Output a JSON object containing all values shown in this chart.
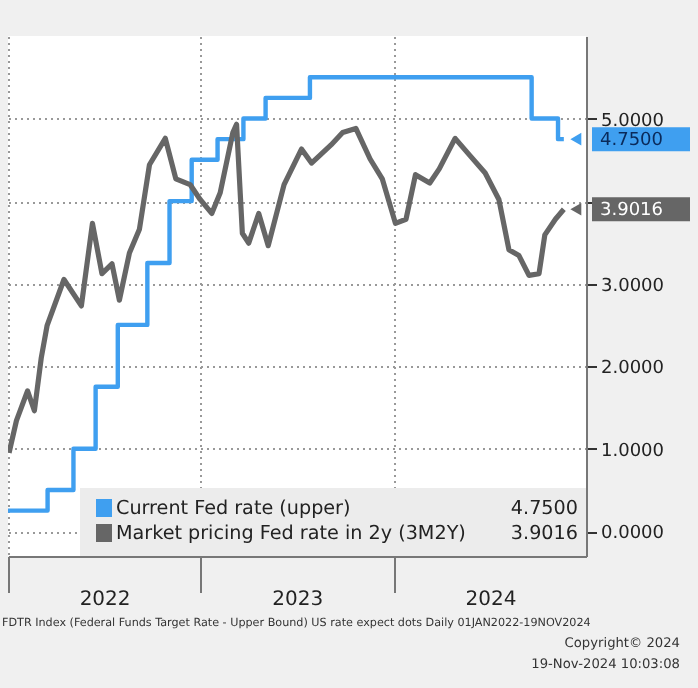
{
  "chart_data": {
    "type": "line",
    "xlim": [
      "2022-01-01",
      "2024-12-31"
    ],
    "xticks": [
      {
        "value": "2022-01-01",
        "label": null
      },
      {
        "value": "2022-07-02",
        "label": "2022"
      },
      {
        "value": "2023-01-01",
        "label": null
      },
      {
        "value": "2023-07-02",
        "label": "2023"
      },
      {
        "value": "2024-01-01",
        "label": null
      },
      {
        "value": "2024-07-02",
        "label": "2024"
      }
    ],
    "ylim": [
      -0.3,
      6.0
    ],
    "yticks": [
      {
        "value": 0,
        "label": "0.0000"
      },
      {
        "value": 1,
        "label": "1.0000"
      },
      {
        "value": 2,
        "label": "2.0000"
      },
      {
        "value": 3,
        "label": "3.0000"
      },
      {
        "value": 4,
        "label": null
      },
      {
        "value": 5,
        "label": "5.0000"
      }
    ],
    "grid": true,
    "legend": "bottom left",
    "series": [
      {
        "name": "Current Fed rate (upper)",
        "type": "step",
        "color": "#3f9ff0",
        "x": [
          "2022-01-01",
          "2022-03-17",
          "2022-05-05",
          "2022-06-16",
          "2022-07-28",
          "2022-09-22",
          "2022-11-03",
          "2022-12-15",
          "2023-02-02",
          "2023-03-23",
          "2023-05-04",
          "2023-07-27",
          "2024-09-19",
          "2024-11-08",
          "2024-11-19"
        ],
        "values": [
          0.25,
          0.5,
          1.0,
          1.75,
          2.5,
          3.25,
          4.0,
          4.5,
          4.75,
          5.0,
          5.25,
          5.5,
          5.0,
          4.75,
          4.75
        ]
      },
      {
        "name": "Market pricing Fed rate in 2y (3M2Y)",
        "type": "line",
        "color": "#666666",
        "x": [
          "2022-01-03",
          "2022-01-17",
          "2022-02-07",
          "2022-02-20",
          "2022-03-05",
          "2022-03-16",
          "2022-04-17",
          "2022-05-20",
          "2022-06-10",
          "2022-06-28",
          "2022-07-17",
          "2022-07-31",
          "2022-08-19",
          "2022-09-07",
          "2022-09-26",
          "2022-10-26",
          "2022-11-15",
          "2022-12-12",
          "2022-12-31",
          "2023-01-22",
          "2023-02-07",
          "2023-03-03",
          "2023-03-10",
          "2023-03-21",
          "2023-04-02",
          "2023-04-21",
          "2023-05-09",
          "2023-06-08",
          "2023-07-11",
          "2023-07-30",
          "2023-09-05",
          "2023-09-27",
          "2023-10-22",
          "2023-11-18",
          "2023-12-11",
          "2024-01-05",
          "2024-01-25",
          "2024-02-12",
          "2024-03-10",
          "2024-03-28",
          "2024-04-27",
          "2024-05-24",
          "2024-06-23",
          "2024-07-19",
          "2024-08-07",
          "2024-08-26",
          "2024-09-14",
          "2024-10-03",
          "2024-10-14",
          "2024-11-03",
          "2024-11-19"
        ],
        "values": [
          0.95,
          1.34,
          1.7,
          1.46,
          2.1,
          2.49,
          3.05,
          2.73,
          3.73,
          3.12,
          3.24,
          2.8,
          3.37,
          3.66,
          4.44,
          4.76,
          4.27,
          4.2,
          4.02,
          3.85,
          4.1,
          4.83,
          4.93,
          3.61,
          3.49,
          3.85,
          3.46,
          4.2,
          4.63,
          4.46,
          4.68,
          4.83,
          4.88,
          4.51,
          4.27,
          3.73,
          3.78,
          4.32,
          4.22,
          4.39,
          4.76,
          4.56,
          4.34,
          4.02,
          3.41,
          3.34,
          3.1,
          3.12,
          3.59,
          3.78,
          3.9016
        ]
      }
    ],
    "annotations": [
      {
        "text": "4.7500",
        "x": "2024-11-19",
        "y": 4.75
      },
      {
        "text": "3.9016",
        "x": "2024-11-19",
        "y": 3.9016
      },
      "FDTR Index (Federal Funds Target Rate - Upper Bound) US rate expect dots Daily 01JAN2022-19NOV2024",
      "Copyright© 2024",
      "19-Nov-2024 10:03:08"
    ]
  }
}
